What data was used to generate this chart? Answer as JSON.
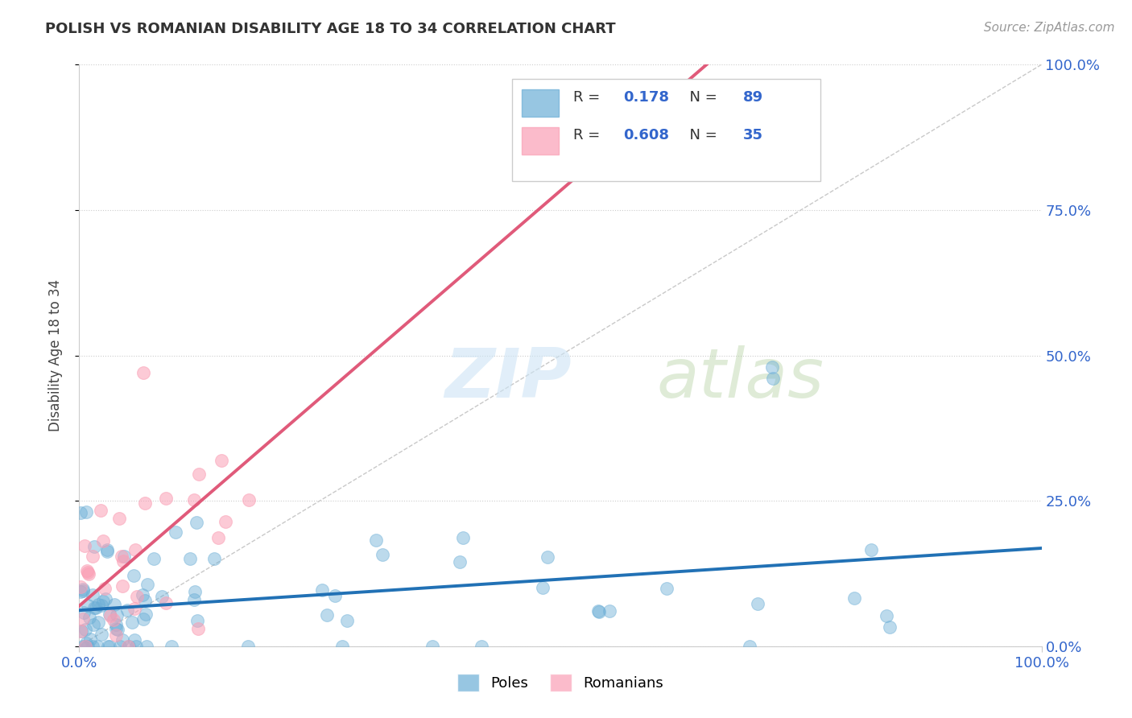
{
  "title": "POLISH VS ROMANIAN DISABILITY AGE 18 TO 34 CORRELATION CHART",
  "source": "Source: ZipAtlas.com",
  "ylabel": "Disability Age 18 to 34",
  "xlim": [
    0,
    1.0
  ],
  "ylim": [
    0,
    1.0
  ],
  "ytick_values": [
    0.0,
    0.25,
    0.5,
    0.75,
    1.0
  ],
  "ytick_labels": [
    "0.0%",
    "25.0%",
    "50.0%",
    "75.0%",
    "100.0%"
  ],
  "xtick_labels": [
    "0.0%",
    "100.0%"
  ],
  "poles_color": "#6baed6",
  "romanians_color": "#fa9fb5",
  "poles_line_color": "#2171b5",
  "romanians_line_color": "#e05a7a",
  "R_poles": 0.178,
  "N_poles": 89,
  "R_romanians": 0.608,
  "N_romanians": 35,
  "watermark_zip": "ZIP",
  "watermark_atlas": "atlas"
}
